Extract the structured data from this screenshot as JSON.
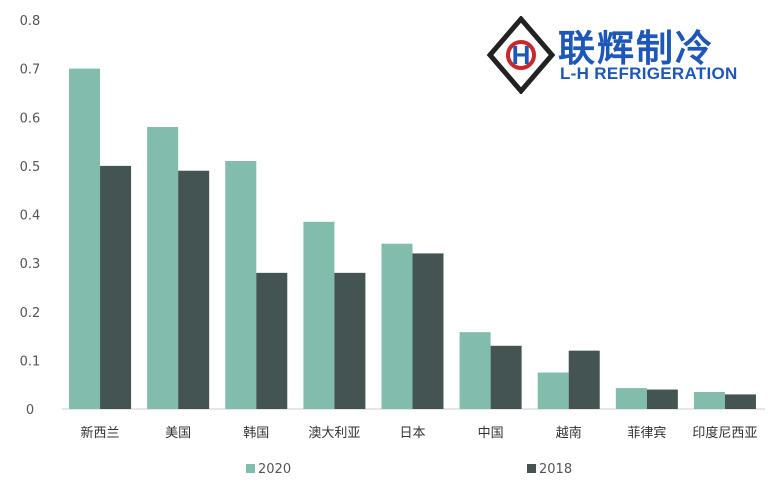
{
  "colors": {
    "series_2020": "#81bcac",
    "series_2018": "#445452",
    "axis": "#cccccc",
    "logo_blue": "#1d57b8",
    "logo_red": "#c8282c",
    "logo_frame": "#222222"
  },
  "logo": {
    "name_cn": "联辉制冷",
    "name_en": "L-H REFRIGERATION",
    "mark_letter": "H"
  },
  "chart_data": {
    "type": "bar",
    "categories": [
      "新西兰",
      "美国",
      "韩国",
      "澳大利亚",
      "日本",
      "中国",
      "越南",
      "菲律宾",
      "印度尼西亚"
    ],
    "series": [
      {
        "name": "2020",
        "values": [
          0.7,
          0.58,
          0.51,
          0.385,
          0.34,
          0.158,
          0.075,
          0.043,
          0.035
        ]
      },
      {
        "name": "2018",
        "values": [
          0.5,
          0.49,
          0.28,
          0.28,
          0.32,
          0.13,
          0.12,
          0.04,
          0.03
        ]
      }
    ],
    "yticks": [
      "0",
      "0.1",
      "0.2",
      "0.3",
      "0.4",
      "0.5",
      "0.6",
      "0.7",
      "0.8"
    ],
    "ylim": [
      0,
      0.8
    ],
    "title": "",
    "xlabel": "",
    "ylabel": "",
    "grid": false,
    "legend_position": "bottom"
  }
}
